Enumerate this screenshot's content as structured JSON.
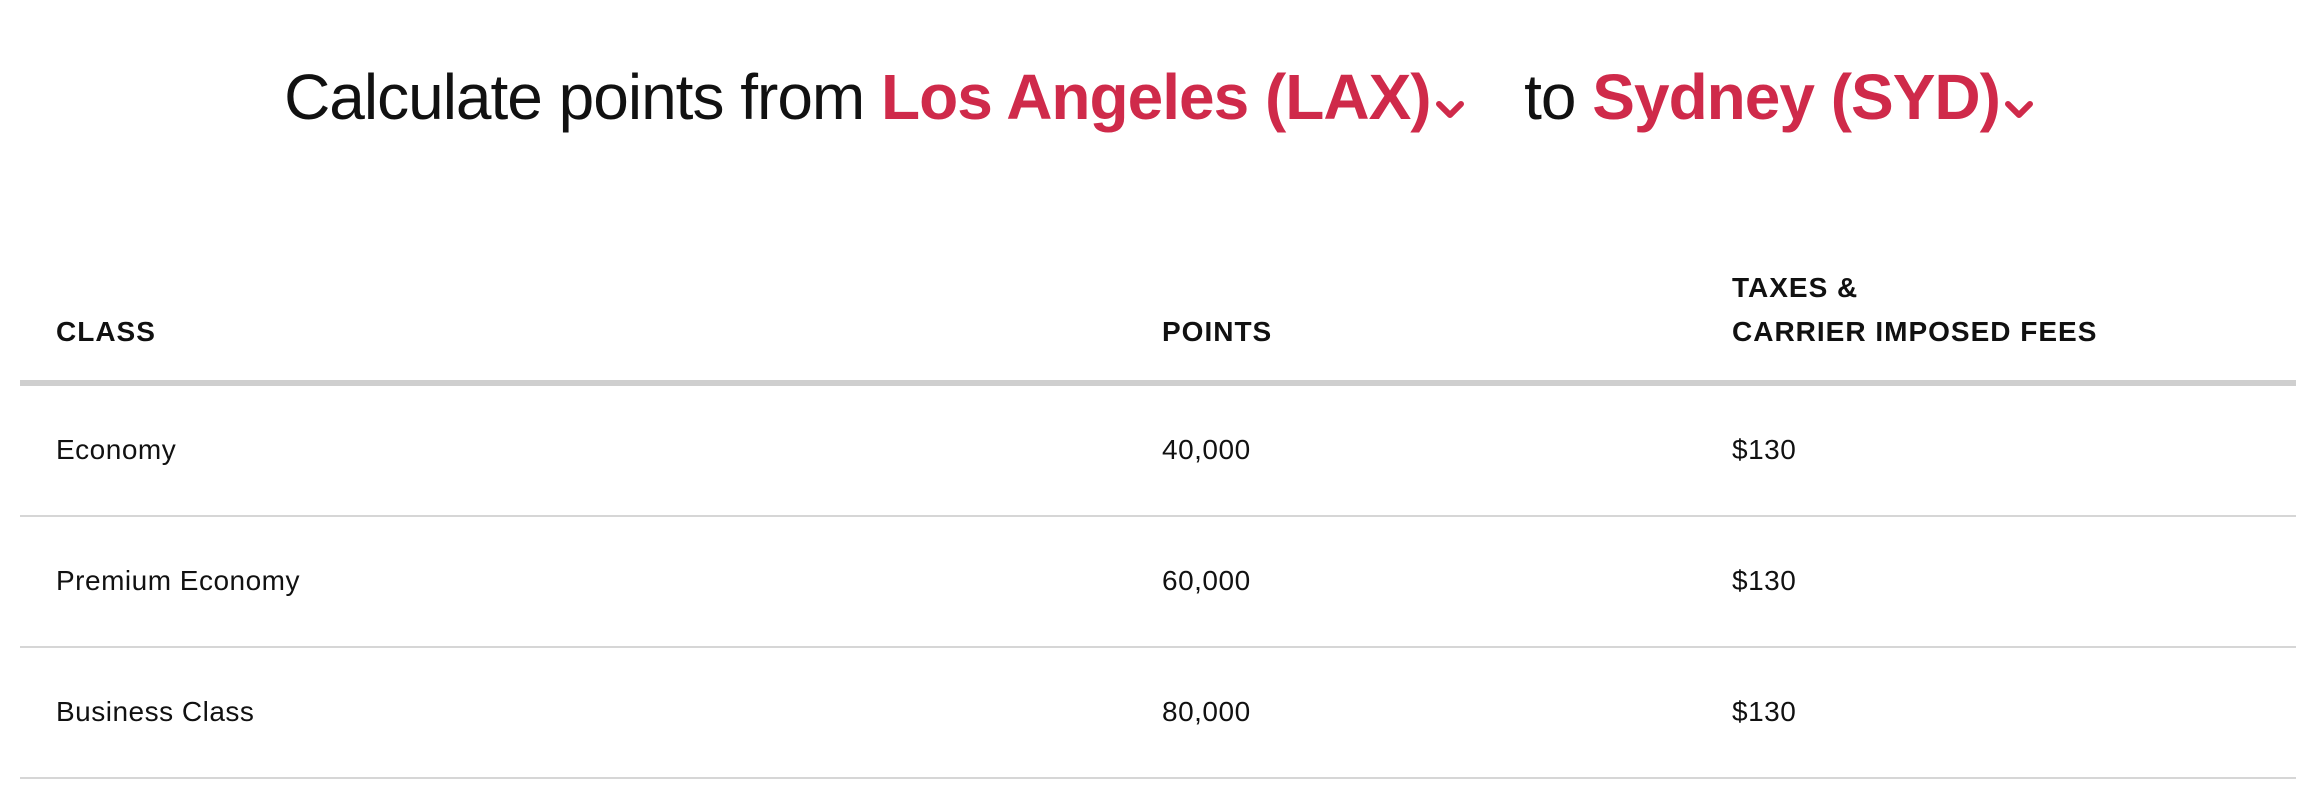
{
  "heading": {
    "prefix": "Calculate points from",
    "origin": "Los Angeles (LAX)",
    "connector": "to",
    "destination": "Sydney (SYD)"
  },
  "colors": {
    "accent": "#cf2a4a",
    "text": "#111111",
    "header_rule": "#cfcfcf",
    "row_rule": "#d6d6d6"
  },
  "icons": {
    "origin_dropdown": "chevron-down-icon",
    "destination_dropdown": "chevron-down-icon"
  },
  "table": {
    "headers": {
      "class": "CLASS",
      "points": "POINTS",
      "taxes_line1": "TAXES &",
      "taxes_line2": "CARRIER IMPOSED FEES"
    },
    "rows": [
      {
        "class": "Economy",
        "points": "40,000",
        "taxes": "$130"
      },
      {
        "class": "Premium Economy",
        "points": "60,000",
        "taxes": "$130"
      },
      {
        "class": "Business Class",
        "points": "80,000",
        "taxes": "$130"
      }
    ]
  }
}
